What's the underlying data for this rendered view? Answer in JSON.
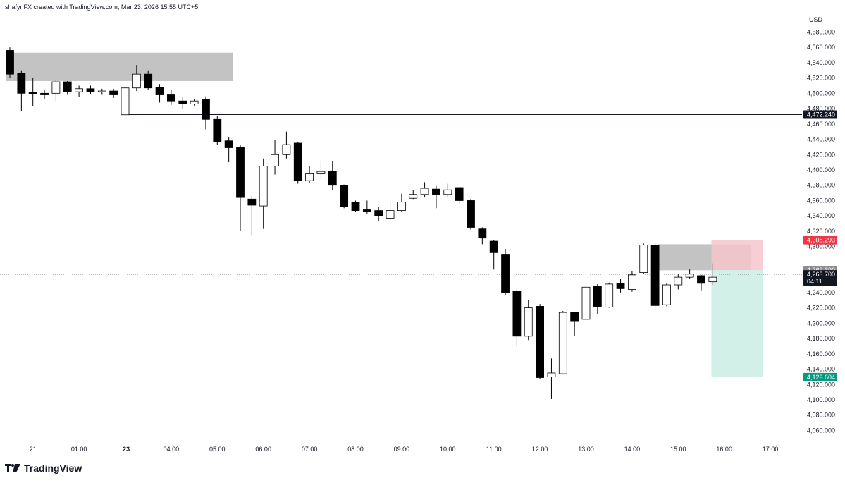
{
  "header": {
    "credit": "shafynFX created with TradingView.com, Mar 23, 2026 15:55 UTC+5"
  },
  "branding": {
    "logo_text": "TradingView"
  },
  "colors": {
    "bull_fill": "#ffffff",
    "bear_fill": "#000000",
    "wick": "#000000",
    "zone": "#bdbdbd",
    "stop_zone": "#f5c6cb",
    "target_zone": "#cdeee5",
    "stop_label": "#f23645",
    "target_label": "#089981",
    "price_label": "#131722"
  },
  "chart_data": {
    "type": "candlestick",
    "currency": "USD",
    "ylim": [
      4052,
      4592
    ],
    "y_ticks": [
      "4,060.000",
      "4,080.000",
      "4,100.000",
      "4,120.000",
      "4,140.000",
      "4,160.000",
      "4,180.000",
      "4,200.000",
      "4,220.000",
      "4,240.000",
      "4,260.000",
      "4,300.000",
      "4,320.000",
      "4,340.000",
      "4,360.000",
      "4,380.000",
      "4,400.000",
      "4,420.000",
      "4,440.000",
      "4,460.000",
      "4,480.000",
      "4,500.000",
      "4,520.000",
      "4,540.000",
      "4,560.000",
      "4,580.000"
    ],
    "x_ticks": [
      {
        "label": "21",
        "bold": false,
        "bar": 2
      },
      {
        "label": "01:00",
        "bold": false,
        "bar": 6
      },
      {
        "label": "23",
        "bold": true,
        "bar": 10.1
      },
      {
        "label": "04:00",
        "bold": false,
        "bar": 14
      },
      {
        "label": "05:00",
        "bold": false,
        "bar": 18
      },
      {
        "label": "06:00",
        "bold": false,
        "bar": 22
      },
      {
        "label": "07:00",
        "bold": false,
        "bar": 26
      },
      {
        "label": "08:00",
        "bold": false,
        "bar": 30
      },
      {
        "label": "09:00",
        "bold": false,
        "bar": 34
      },
      {
        "label": "10:00",
        "bold": false,
        "bar": 38
      },
      {
        "label": "11:00",
        "bold": false,
        "bar": 42
      },
      {
        "label": "12:00",
        "bold": false,
        "bar": 46
      },
      {
        "label": "13:00",
        "bold": false,
        "bar": 50
      },
      {
        "label": "14:00",
        "bold": false,
        "bar": 54
      },
      {
        "label": "15:00",
        "bold": false,
        "bar": 58
      },
      {
        "label": "16:00",
        "bold": false,
        "bar": 62
      },
      {
        "label": "17:00",
        "bold": false,
        "bar": 66
      }
    ],
    "candles": [
      {
        "o": 4556,
        "h": 4560,
        "c": 4525,
        "l": 4520
      },
      {
        "o": 4526,
        "h": 4530,
        "c": 4500,
        "l": 4477
      },
      {
        "o": 4501,
        "h": 4520,
        "c": 4500,
        "l": 4483
      },
      {
        "o": 4500,
        "h": 4505,
        "c": 4498,
        "l": 4492
      },
      {
        "o": 4500,
        "h": 4518,
        "c": 4515,
        "l": 4490
      },
      {
        "o": 4515,
        "h": 4516,
        "c": 4502,
        "l": 4498
      },
      {
        "o": 4502,
        "h": 4510,
        "c": 4506,
        "l": 4495
      },
      {
        "o": 4506,
        "h": 4510,
        "c": 4502,
        "l": 4499
      },
      {
        "o": 4502,
        "h": 4506,
        "c": 4503,
        "l": 4498
      },
      {
        "o": 4503,
        "h": 4506,
        "c": 4498,
        "l": 4494
      },
      {
        "o": 4472,
        "h": 4517,
        "c": 4507,
        "l": 4472
      },
      {
        "o": 4507,
        "h": 4537,
        "c": 4525,
        "l": 4503
      },
      {
        "o": 4525,
        "h": 4530,
        "c": 4507,
        "l": 4505
      },
      {
        "o": 4508,
        "h": 4512,
        "c": 4498,
        "l": 4488
      },
      {
        "o": 4498,
        "h": 4505,
        "c": 4490,
        "l": 4485
      },
      {
        "o": 4490,
        "h": 4495,
        "c": 4486,
        "l": 4480
      },
      {
        "o": 4486,
        "h": 4492,
        "c": 4490,
        "l": 4484
      },
      {
        "o": 4492,
        "h": 4496,
        "c": 4466,
        "l": 4453
      },
      {
        "o": 4466,
        "h": 4470,
        "c": 4437,
        "l": 4433
      },
      {
        "o": 4438,
        "h": 4443,
        "c": 4429,
        "l": 4410
      },
      {
        "o": 4430,
        "h": 4433,
        "c": 4364,
        "l": 4320
      },
      {
        "o": 4362,
        "h": 4366,
        "c": 4354,
        "l": 4315
      },
      {
        "o": 4353,
        "h": 4415,
        "c": 4405,
        "l": 4323
      },
      {
        "o": 4405,
        "h": 4439,
        "c": 4420,
        "l": 4394
      },
      {
        "o": 4420,
        "h": 4450,
        "c": 4433,
        "l": 4415
      },
      {
        "o": 4435,
        "h": 4436,
        "c": 4386,
        "l": 4382
      },
      {
        "o": 4386,
        "h": 4405,
        "c": 4395,
        "l": 4383
      },
      {
        "o": 4395,
        "h": 4412,
        "c": 4398,
        "l": 4390
      },
      {
        "o": 4398,
        "h": 4412,
        "c": 4380,
        "l": 4374
      },
      {
        "o": 4380,
        "h": 4381,
        "c": 4352,
        "l": 4350
      },
      {
        "o": 4358,
        "h": 4360,
        "c": 4347,
        "l": 4345
      },
      {
        "o": 4348,
        "h": 4360,
        "c": 4346,
        "l": 4343
      },
      {
        "o": 4347,
        "h": 4352,
        "c": 4340,
        "l": 4333
      },
      {
        "o": 4337,
        "h": 4358,
        "c": 4347,
        "l": 4335
      },
      {
        "o": 4347,
        "h": 4369,
        "c": 4358,
        "l": 4345
      },
      {
        "o": 4363,
        "h": 4374,
        "c": 4368,
        "l": 4362
      },
      {
        "o": 4368,
        "h": 4384,
        "c": 4376,
        "l": 4364
      },
      {
        "o": 4375,
        "h": 4379,
        "c": 4368,
        "l": 4350
      },
      {
        "o": 4368,
        "h": 4382,
        "c": 4374,
        "l": 4365
      },
      {
        "o": 4377,
        "h": 4378,
        "c": 4360,
        "l": 4356
      },
      {
        "o": 4360,
        "h": 4362,
        "c": 4325,
        "l": 4322
      },
      {
        "o": 4323,
        "h": 4325,
        "c": 4311,
        "l": 4303
      },
      {
        "o": 4307,
        "h": 4308,
        "c": 4292,
        "l": 4270
      },
      {
        "o": 4290,
        "h": 4297,
        "c": 4240,
        "l": 4237
      },
      {
        "o": 4242,
        "h": 4245,
        "c": 4183,
        "l": 4170
      },
      {
        "o": 4183,
        "h": 4230,
        "c": 4220,
        "l": 4178
      },
      {
        "o": 4222,
        "h": 4225,
        "c": 4129,
        "l": 4127
      },
      {
        "o": 4130,
        "h": 4154,
        "c": 4135,
        "l": 4101
      },
      {
        "o": 4134,
        "h": 4216,
        "c": 4214,
        "l": 4133
      },
      {
        "o": 4214,
        "h": 4215,
        "c": 4203,
        "l": 4183
      },
      {
        "o": 4205,
        "h": 4248,
        "c": 4247,
        "l": 4196
      },
      {
        "o": 4248,
        "h": 4251,
        "c": 4221,
        "l": 4212
      },
      {
        "o": 4221,
        "h": 4253,
        "c": 4251,
        "l": 4220
      },
      {
        "o": 4252,
        "h": 4258,
        "c": 4245,
        "l": 4240
      },
      {
        "o": 4244,
        "h": 4268,
        "c": 4263,
        "l": 4241
      },
      {
        "o": 4266,
        "h": 4304,
        "c": 4302,
        "l": 4264
      },
      {
        "o": 4302,
        "h": 4305,
        "c": 4223,
        "l": 4221
      },
      {
        "o": 4224,
        "h": 4252,
        "c": 4250,
        "l": 4222
      },
      {
        "o": 4250,
        "h": 4264,
        "c": 4260,
        "l": 4244
      },
      {
        "o": 4260,
        "h": 4270,
        "c": 4264,
        "l": 4258
      },
      {
        "o": 4262,
        "h": 4263,
        "c": 4252,
        "l": 4243
      },
      {
        "o": 4254,
        "h": 4278,
        "c": 4260,
        "l": 4250
      }
    ],
    "zones": [
      {
        "bar_start": 0,
        "bar_end": 19,
        "top": 4553,
        "bottom": 4516
      },
      {
        "bar_start": 56.5,
        "bar_end": 64,
        "top": 4303,
        "bottom": 4269
      }
    ],
    "position": {
      "bar_start": 61,
      "bar_end": 65,
      "entry": 4269.3,
      "stop": 4308.293,
      "target": 4129.604
    },
    "hline": {
      "price": 4472.24,
      "bar_start": 10
    },
    "current_price": 4263.7,
    "price_labels": {
      "hline": "4,472.240",
      "stop": "4,308.293",
      "entry": "4,269.300",
      "last": "4,263.700",
      "countdown": "04:11",
      "target": "4,129.604"
    }
  }
}
